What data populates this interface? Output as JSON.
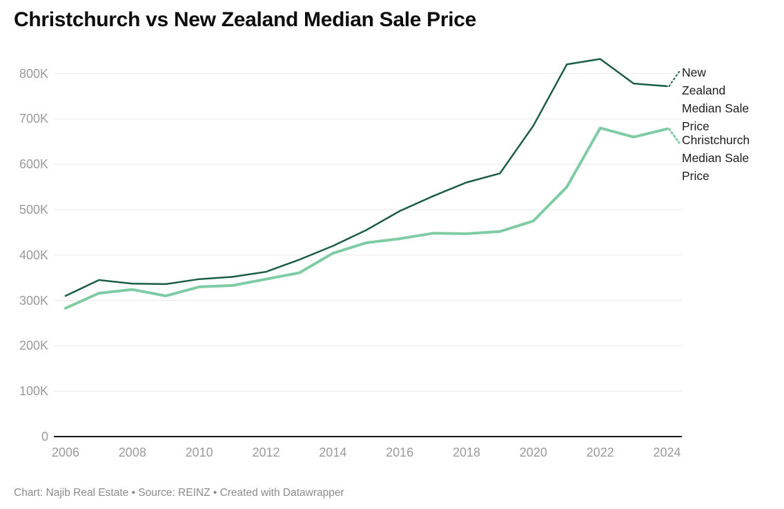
{
  "title": "Christchurch vs New Zealand Median Sale Price",
  "footer": "Chart: Najib Real Estate • Source: REINZ • Created with Datawrapper",
  "colors": {
    "nz_line": "#1a5c48",
    "christchurch_line": "#7ecba4",
    "grid": "#eaeaea",
    "axis": "#161616",
    "tick_text": "#9b9b9b",
    "legend_text": "#1d1d1d",
    "footer_text": "#8c8c8c",
    "title_text": "#0d0d0d",
    "background": "#ffffff"
  },
  "chart_data": {
    "type": "line",
    "title": "Christchurch vs New Zealand Median Sale Price",
    "xlabel": "",
    "ylabel": "",
    "grid": "horizontal",
    "legend_position": "right-of-line-ends",
    "x": [
      2006,
      2007,
      2008,
      2009,
      2010,
      2011,
      2012,
      2013,
      2014,
      2015,
      2016,
      2017,
      2018,
      2019,
      2020,
      2021,
      2022,
      2023,
      2024
    ],
    "series": [
      {
        "name": "New Zealand Median Sale Price",
        "label_lines": [
          "New",
          "Zealand",
          "Median Sale",
          "Price"
        ],
        "color": "#1a5c48",
        "values": [
          310000,
          345000,
          337000,
          336000,
          347000,
          352000,
          363000,
          390000,
          420000,
          455000,
          497000,
          530000,
          560000,
          580000,
          685000,
          820000,
          832000,
          778000,
          772000
        ]
      },
      {
        "name": "Christchurch Median Sale Price",
        "label_lines": [
          "Christchurch",
          "Median Sale",
          "Price"
        ],
        "color": "#7ecba4",
        "values": [
          283000,
          316000,
          324000,
          310000,
          330000,
          333000,
          347000,
          361000,
          404000,
          427000,
          436000,
          448000,
          447000,
          452000,
          475000,
          550000,
          680000,
          660000,
          678000
        ]
      }
    ],
    "ylim": [
      0,
      850000
    ],
    "xlim": [
      2006,
      2024
    ],
    "y_ticks": {
      "values": [
        0,
        100000,
        200000,
        300000,
        400000,
        500000,
        600000,
        700000,
        800000
      ],
      "labels": [
        "0",
        "100K",
        "200K",
        "300K",
        "400K",
        "500K",
        "600K",
        "700K",
        "800K"
      ]
    },
    "x_ticks": {
      "values": [
        2006,
        2008,
        2010,
        2012,
        2014,
        2016,
        2018,
        2020,
        2022,
        2024
      ],
      "labels": [
        "2006",
        "2008",
        "2010",
        "2012",
        "2014",
        "2016",
        "2018",
        "2020",
        "2022",
        "2024"
      ]
    }
  }
}
